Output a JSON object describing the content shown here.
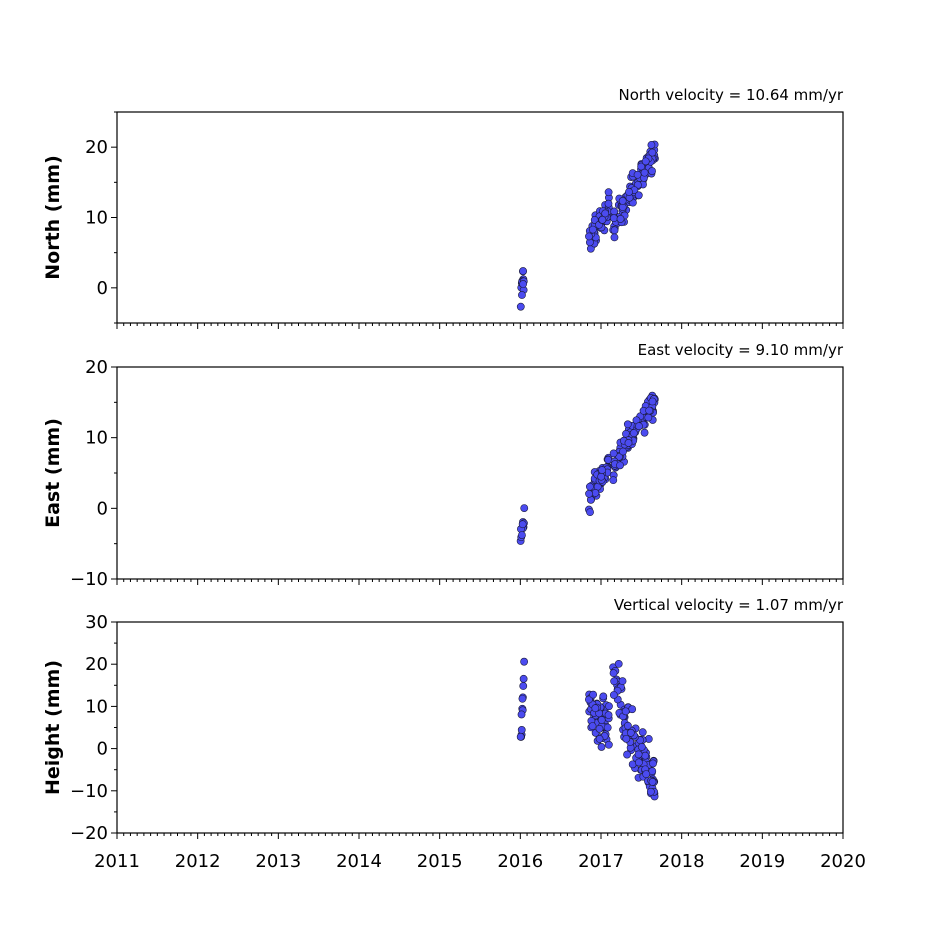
{
  "chart_data": [
    {
      "type": "scatter",
      "title": "North velocity = 10.64 mm/yr",
      "ylabel": "North (mm)",
      "xlim": [
        2011,
        2020
      ],
      "ylim": [
        -5,
        25
      ],
      "yticks": [
        0,
        10,
        20
      ],
      "yticklabels": [
        "0",
        "10",
        "20"
      ],
      "color": "#4b4bf0",
      "groups": [
        {
          "t0": 2016.0,
          "t1": 2016.05,
          "y0": -3,
          "y1": 3,
          "spread": 2.2,
          "n": 12
        },
        {
          "t0": 2016.85,
          "t1": 2017.1,
          "y0": 6.5,
          "y1": 11.5,
          "spread": 1.6,
          "n": 55
        },
        {
          "t0": 2017.15,
          "t1": 2017.67,
          "y0": 9,
          "y1": 19.5,
          "spread": 1.7,
          "n": 110
        }
      ]
    },
    {
      "type": "scatter",
      "title": "East velocity = 9.10 mm/yr",
      "ylabel": "East (mm)",
      "xlim": [
        2011,
        2020
      ],
      "ylim": [
        -10,
        20
      ],
      "yticks": [
        -10,
        0,
        10,
        20
      ],
      "yticklabels": [
        "−10",
        "0",
        "10",
        "20"
      ],
      "color": "#4b4bf0",
      "groups": [
        {
          "t0": 2016.0,
          "t1": 2016.05,
          "y0": -4.5,
          "y1": -1.5,
          "spread": 1.3,
          "n": 10
        },
        {
          "t0": 2016.85,
          "t1": 2017.1,
          "y0": 1.5,
          "y1": 6.5,
          "spread": 1.7,
          "n": 55
        },
        {
          "t0": 2017.15,
          "t1": 2017.67,
          "y0": 6,
          "y1": 15.5,
          "spread": 1.6,
          "n": 110
        }
      ]
    },
    {
      "type": "scatter",
      "title": "Vertical velocity = 1.07 mm/yr",
      "ylabel": "Height (mm)",
      "xlim": [
        2011,
        2020
      ],
      "ylim": [
        -20,
        30
      ],
      "yticks": [
        -20,
        -10,
        0,
        10,
        20,
        30
      ],
      "yticklabels": [
        "−20",
        "−10",
        "0",
        "10",
        "20",
        "30"
      ],
      "xticks": [
        2011,
        2012,
        2013,
        2014,
        2015,
        2016,
        2017,
        2018,
        2019,
        2020
      ],
      "xticklabels": [
        "2011",
        "2012",
        "2013",
        "2014",
        "2015",
        "2016",
        "2017",
        "2018",
        "2019",
        "2020"
      ],
      "color": "#4b4bf0",
      "groups": [
        {
          "t0": 2016.0,
          "t1": 2016.05,
          "y0": 0,
          "y1": 19,
          "spread": 2.5,
          "n": 12
        },
        {
          "t0": 2016.85,
          "t1": 2017.1,
          "y0": 10,
          "y1": 5,
          "spread": 5,
          "n": 60
        },
        {
          "t0": 2017.15,
          "t1": 2017.3,
          "y0": 18,
          "y1": 8,
          "spread": 5,
          "n": 30
        },
        {
          "t0": 2017.3,
          "t1": 2017.67,
          "y0": 4,
          "y1": -8,
          "spread": 5.5,
          "n": 85
        }
      ]
    }
  ]
}
